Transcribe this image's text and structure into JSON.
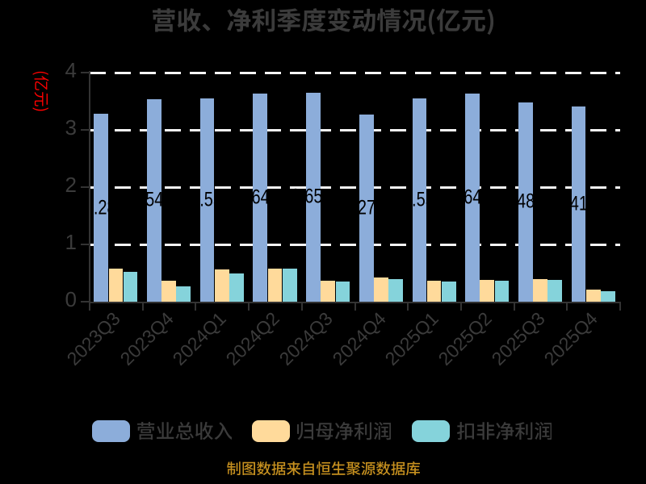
{
  "chart_data": {
    "type": "bar",
    "title": "营收、净利季度变动情况(亿元)",
    "y_axis_unit_label": "(亿元)",
    "categories": [
      "2023Q3",
      "2023Q4",
      "2024Q1",
      "2024Q2",
      "2024Q3",
      "2024Q4",
      "2025Q1",
      "2025Q2",
      "2025Q3",
      "2025Q4"
    ],
    "series": [
      {
        "name": "营业总收入",
        "color": "#8CADDA",
        "values": [
          3.28,
          3.54,
          3.55,
          3.64,
          3.65,
          3.27,
          3.55,
          3.64,
          3.48,
          3.41
        ],
        "labels": [
          "3.28",
          "3.54",
          "3.55",
          "3.64",
          "3.65",
          "3.27",
          "3.55",
          "3.64",
          "3.48",
          "3.41"
        ],
        "label_dx": [
          -1,
          -8,
          -1,
          -8,
          -8,
          -8,
          -1,
          -8,
          -8,
          -8
        ]
      },
      {
        "name": "归母净利润",
        "color": "#FFDA9B",
        "values": [
          0.58,
          0.36,
          0.57,
          0.58,
          0.37,
          0.42,
          0.37,
          0.38,
          0.4,
          0.21
        ]
      },
      {
        "name": "扣非净利润",
        "color": "#85D3DB",
        "values": [
          0.52,
          0.27,
          0.49,
          0.58,
          0.35,
          0.4,
          0.35,
          0.37,
          0.38,
          0.18
        ]
      }
    ],
    "ylim": [
      0,
      4
    ],
    "yticks": [
      "0",
      "1",
      "2",
      "3",
      "4"
    ],
    "grid": "dashed-horizontal",
    "legend_position": "bottom",
    "source_note": "制图数据来自恒生聚源数据库"
  },
  "colors": {
    "background": "#000000",
    "title_text": "#3B3B3B",
    "axis_line": "#333333",
    "tick_label": "#3B3B3B",
    "gridline": "#F5F5F5",
    "bar_value_label": "#000000",
    "unit_label_red": "#FF0000",
    "source_note_gold": "#C6901F",
    "legend_text": "#3B3B3B"
  }
}
